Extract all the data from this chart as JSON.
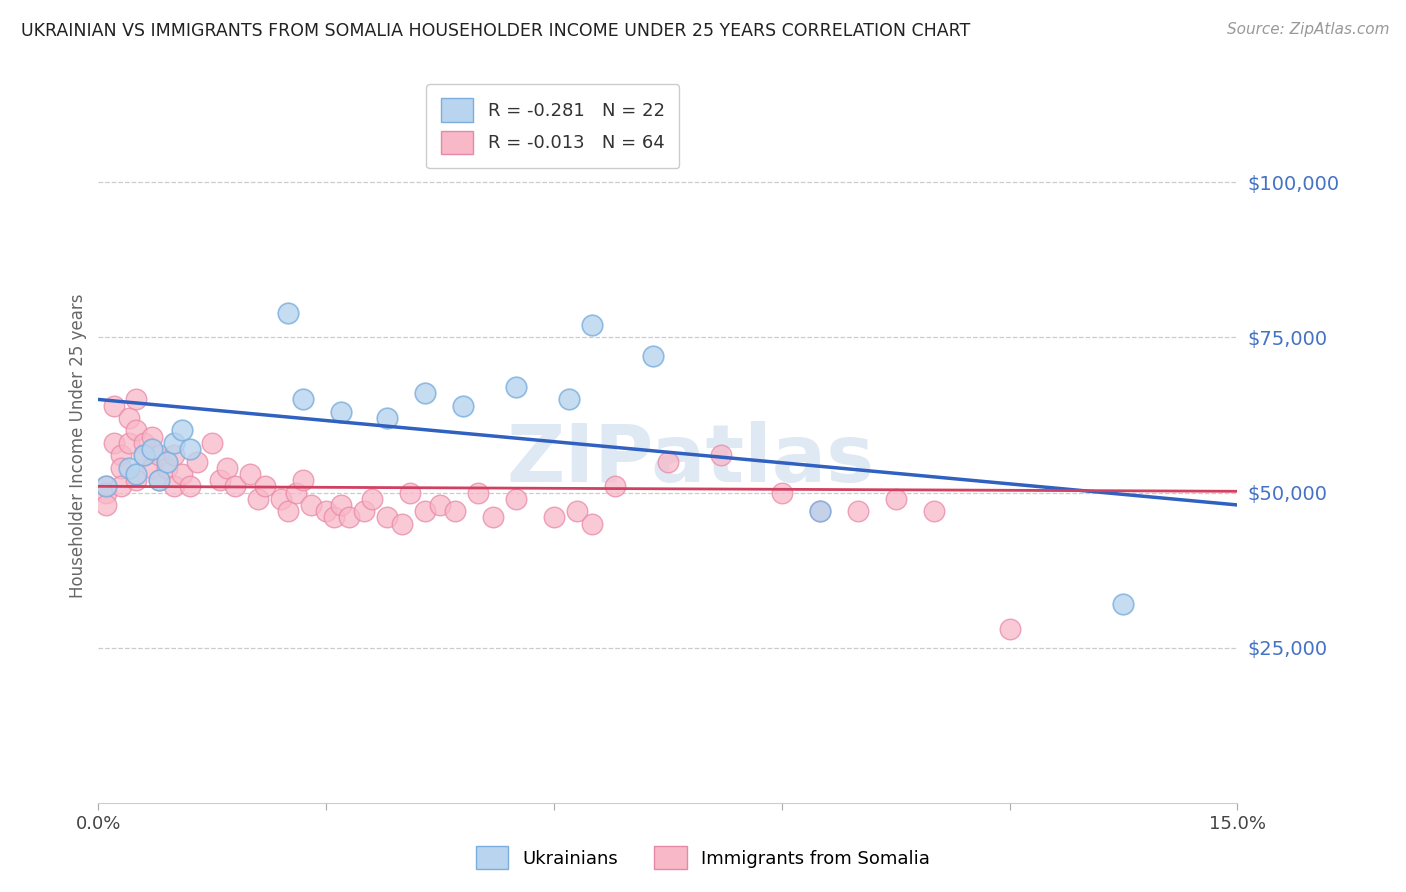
{
  "title": "UKRAINIAN VS IMMIGRANTS FROM SOMALIA HOUSEHOLDER INCOME UNDER 25 YEARS CORRELATION CHART",
  "source": "Source: ZipAtlas.com",
  "ylabel": "Householder Income Under 25 years",
  "right_ytick_labels": [
    "$100,000",
    "$75,000",
    "$50,000",
    "$25,000"
  ],
  "right_ytick_values": [
    100000,
    75000,
    50000,
    25000
  ],
  "ylim": [
    0,
    115000
  ],
  "xlim": [
    0,
    0.15
  ],
  "watermark": "ZIPatlas",
  "ukr_R": "-0.281",
  "ukr_N": "22",
  "som_R": "-0.013",
  "som_N": "64",
  "ukr_color_fill": "#b8d4ee",
  "ukr_color_edge": "#7aaede",
  "som_color_fill": "#f8b8c8",
  "som_color_edge": "#e888a8",
  "ukr_line_color": "#3060c0",
  "som_line_color": "#d04060",
  "ukrainian_x": [
    0.001,
    0.004,
    0.005,
    0.006,
    0.007,
    0.008,
    0.009,
    0.01,
    0.011,
    0.012,
    0.025,
    0.027,
    0.032,
    0.038,
    0.043,
    0.048,
    0.055,
    0.062,
    0.065,
    0.073,
    0.095,
    0.135
  ],
  "ukrainian_y": [
    51000,
    54000,
    53000,
    56000,
    57000,
    52000,
    55000,
    58000,
    60000,
    57000,
    79000,
    65000,
    63000,
    62000,
    66000,
    64000,
    67000,
    65000,
    77000,
    72000,
    47000,
    32000
  ],
  "somalia_x": [
    0.001,
    0.001,
    0.001,
    0.002,
    0.002,
    0.003,
    0.003,
    0.003,
    0.004,
    0.004,
    0.005,
    0.005,
    0.005,
    0.006,
    0.006,
    0.007,
    0.007,
    0.008,
    0.008,
    0.009,
    0.01,
    0.01,
    0.011,
    0.012,
    0.013,
    0.015,
    0.016,
    0.017,
    0.018,
    0.02,
    0.021,
    0.022,
    0.024,
    0.025,
    0.026,
    0.027,
    0.028,
    0.03,
    0.031,
    0.032,
    0.033,
    0.035,
    0.036,
    0.038,
    0.04,
    0.041,
    0.043,
    0.045,
    0.047,
    0.05,
    0.052,
    0.055,
    0.06,
    0.063,
    0.065,
    0.068,
    0.075,
    0.082,
    0.09,
    0.095,
    0.1,
    0.105,
    0.11,
    0.12
  ],
  "somalia_y": [
    51000,
    50000,
    48000,
    64000,
    58000,
    56000,
    54000,
    51000,
    62000,
    58000,
    65000,
    60000,
    52000,
    58000,
    56000,
    59000,
    54000,
    56000,
    52000,
    54000,
    56000,
    51000,
    53000,
    51000,
    55000,
    58000,
    52000,
    54000,
    51000,
    53000,
    49000,
    51000,
    49000,
    47000,
    50000,
    52000,
    48000,
    47000,
    46000,
    48000,
    46000,
    47000,
    49000,
    46000,
    45000,
    50000,
    47000,
    48000,
    47000,
    50000,
    46000,
    49000,
    46000,
    47000,
    45000,
    51000,
    55000,
    56000,
    50000,
    47000,
    47000,
    49000,
    47000,
    28000
  ]
}
